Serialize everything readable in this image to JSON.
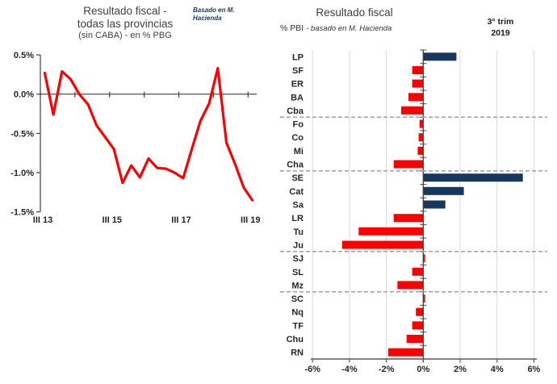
{
  "left_chart": {
    "title_line1": "Resultado fiscal -",
    "title_line2": "todas las provincias",
    "title_line3": "(sin CABA) - en % PBG",
    "note_line1": "Basado en M.",
    "note_line2": "Hacienda"
  },
  "right_chart": {
    "title": "Resultado fiscal",
    "subtitle_prefix": "% PBI",
    "subtitle_italic": "- basado en M. Hacienda",
    "period_line1": "3° trim",
    "period_line2": "2019"
  },
  "colors": {
    "line_red": "#FF0000",
    "bar_red": "#FF0000",
    "bar_navy": "#17375E",
    "note_navy": "#1F3864",
    "gridline_gray": "#D9D9D9",
    "dashed_gray": "#A0A0A0",
    "axis_dark": "#404040",
    "axis_gray": "#595959",
    "label_dark": "#262626",
    "title_gray": "#3f3f3f"
  },
  "chart_data": [
    {
      "type": "line",
      "title": "Resultado fiscal - todas las provincias (sin CABA) - en % PBG",
      "source_note": "Basado en M. Hacienda",
      "frequency": "quarterly",
      "x_start": "III 13",
      "x_end": "III 19",
      "x_tick_labels": [
        "III 13",
        "III 15",
        "III 17",
        "III 19"
      ],
      "y_tick_labels": [
        "0.5%",
        "0.0%",
        "-0.5%",
        "-1.0%",
        "-1.5%"
      ],
      "y_ticks": [
        0.5,
        0.0,
        -0.5,
        -1.0,
        -1.5
      ],
      "ylim": [
        -1.5,
        0.5
      ],
      "grid": false,
      "series_color": "#FF0000",
      "values_pct": [
        0.27,
        -0.26,
        0.29,
        0.19,
        0.0,
        -0.13,
        -0.4,
        -0.55,
        -0.7,
        -1.13,
        -0.91,
        -1.06,
        -0.82,
        -0.94,
        -0.95,
        -1.0,
        -1.07,
        -0.7,
        -0.34,
        -0.12,
        0.33,
        -0.62,
        -0.89,
        -1.19,
        -1.35
      ]
    },
    {
      "type": "bar",
      "orientation": "horizontal",
      "title": "Resultado fiscal",
      "subtitle": "% PBI - basado en M. Hacienda",
      "period": "3° trim 2019",
      "xlim": [
        -6,
        6
      ],
      "x_tick_values": [
        -6,
        -4,
        -2,
        0,
        2,
        4,
        6
      ],
      "x_tick_labels": [
        "-6%",
        "-4%",
        "-2%",
        "0%",
        "2%",
        "4%",
        "6%"
      ],
      "grid": true,
      "categories": [
        "LP",
        "SF",
        "ER",
        "BA",
        "Cba",
        "Fo",
        "Co",
        "Mi",
        "Cha",
        "SE",
        "Cat",
        "Sa",
        "LR",
        "Tu",
        "Ju",
        "SJ",
        "SL",
        "Mz",
        "SC",
        "Nq",
        "TF",
        "Chu",
        "RN"
      ],
      "values_pct": [
        1.8,
        -0.6,
        -0.6,
        -0.8,
        -1.2,
        -0.2,
        -0.25,
        -0.3,
        -1.6,
        5.4,
        2.2,
        1.2,
        -1.6,
        -3.5,
        -4.4,
        0.1,
        -0.6,
        -1.4,
        0.1,
        -0.4,
        -0.6,
        -0.9,
        -1.9
      ],
      "bar_colors": [
        "navy",
        "red",
        "red",
        "red",
        "red",
        "red",
        "red",
        "red",
        "red",
        "navy",
        "navy",
        "navy",
        "red",
        "red",
        "red",
        "red",
        "red",
        "red",
        "red",
        "red",
        "red",
        "red",
        "red"
      ],
      "group_separators_after": [
        "Cba",
        "Cha",
        "Ju",
        "Mz"
      ]
    }
  ]
}
